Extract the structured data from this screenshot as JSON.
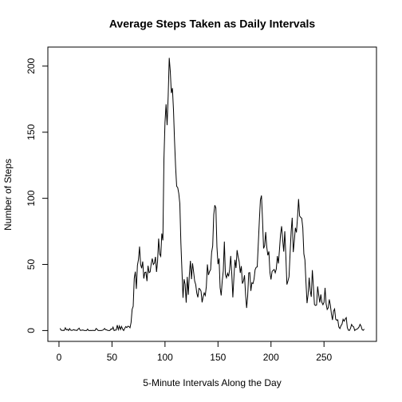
{
  "chart_data": {
    "type": "line",
    "title": "Average Steps Taken as Daily Intervals",
    "x_label": "5-Minute Intervals Along the Day",
    "y_label": "Number of Steps",
    "color": "#000000",
    "xlim": [
      -10.5,
      299.5
    ],
    "ylim": [
      -8.2,
      214.4
    ],
    "xticks": [
      0,
      50,
      100,
      150,
      200,
      250
    ],
    "yticks": [
      0,
      50,
      100,
      150,
      200
    ],
    "x": [
      1,
      2,
      3,
      4,
      5,
      6,
      7,
      8,
      9,
      10,
      11,
      12,
      13,
      14,
      15,
      16,
      17,
      18,
      19,
      20,
      21,
      22,
      23,
      24,
      25,
      26,
      27,
      28,
      29,
      30,
      31,
      32,
      33,
      34,
      35,
      36,
      37,
      38,
      39,
      40,
      41,
      42,
      43,
      44,
      45,
      46,
      47,
      48,
      49,
      50,
      51,
      52,
      53,
      54,
      55,
      56,
      57,
      58,
      59,
      60,
      61,
      62,
      63,
      64,
      65,
      66,
      67,
      68,
      69,
      70,
      71,
      72,
      73,
      74,
      75,
      76,
      77,
      78,
      79,
      80,
      81,
      82,
      83,
      84,
      85,
      86,
      87,
      88,
      89,
      90,
      91,
      92,
      93,
      94,
      95,
      96,
      97,
      98,
      99,
      100,
      101,
      102,
      103,
      104,
      105,
      106,
      107,
      108,
      109,
      110,
      111,
      112,
      113,
      114,
      115,
      116,
      117,
      118,
      119,
      120,
      121,
      122,
      123,
      124,
      125,
      126,
      127,
      128,
      129,
      130,
      131,
      132,
      133,
      134,
      135,
      136,
      137,
      138,
      139,
      140,
      141,
      142,
      143,
      144,
      145,
      146,
      147,
      148,
      149,
      150,
      151,
      152,
      153,
      154,
      155,
      156,
      157,
      158,
      159,
      160,
      161,
      162,
      163,
      164,
      165,
      166,
      167,
      168,
      169,
      170,
      171,
      172,
      173,
      174,
      175,
      176,
      177,
      178,
      179,
      180,
      181,
      182,
      183,
      184,
      185,
      186,
      187,
      188,
      189,
      190,
      191,
      192,
      193,
      194,
      195,
      196,
      197,
      198,
      199,
      200,
      201,
      202,
      203,
      204,
      205,
      206,
      207,
      208,
      209,
      210,
      211,
      212,
      213,
      214,
      215,
      216,
      217,
      218,
      219,
      220,
      221,
      222,
      223,
      224,
      225,
      226,
      227,
      228,
      229,
      230,
      231,
      232,
      233,
      234,
      235,
      236,
      237,
      238,
      239,
      240,
      241,
      242,
      243,
      244,
      245,
      246,
      247,
      248,
      249,
      250,
      251,
      252,
      253,
      254,
      255,
      256,
      257,
      258,
      259,
      260,
      261,
      262,
      263,
      264,
      265,
      266,
      267,
      268,
      269,
      270,
      271,
      272,
      273,
      274,
      275,
      276,
      277,
      278,
      279,
      280,
      281,
      282,
      283,
      284,
      285,
      286,
      287,
      288
    ],
    "values": [
      1.7,
      0.3,
      0.1,
      0.2,
      0.1,
      2.1,
      0.5,
      0.9,
      0,
      1.5,
      0.3,
      0.1,
      0.3,
      0.7,
      0.2,
      0.3,
      0,
      1.1,
      1.8,
      0.2,
      0.2,
      0.4,
      0.3,
      0,
      0,
      0,
      1.1,
      0,
      0,
      0.1,
      0,
      0.2,
      0,
      0,
      1.5,
      0.9,
      0,
      0,
      0,
      0,
      0.2,
      0.6,
      1.6,
      0.6,
      0.5,
      0.1,
      0,
      0,
      1.2,
      0.9,
      2.6,
      0,
      0.3,
      0.4,
      4.1,
      0.7,
      3.5,
      0.8,
      3.1,
      1.1,
      0,
      1.6,
      3,
      2.2,
      3.3,
      3,
      2.1,
      6.1,
      16,
      18.3,
      39.5,
      44.5,
      31.5,
      49.3,
      53.8,
      63.5,
      50,
      47.1,
      52.2,
      39.3,
      44,
      44.2,
      37.4,
      49,
      43.8,
      44.4,
      50.5,
      54.5,
      49.9,
      51,
      55.7,
      44.3,
      52.3,
      69.5,
      57.8,
      56.2,
      73.4,
      68.2,
      129.4,
      157.5,
      171.2,
      155.4,
      177.3,
      206.2,
      195.9,
      179.6,
      183.4,
      167,
      143.5,
      124,
      109.1,
      108.1,
      103.7,
      96,
      66.2,
      45.2,
      24.8,
      38.8,
      35,
      21.1,
      40.6,
      27,
      42.4,
      52.7,
      38.9,
      50.8,
      44.3,
      37.4,
      34.7,
      28.3,
      25.1,
      31.9,
      31.4,
      29.7,
      21.3,
      25.5,
      28.4,
      26.5,
      33.4,
      50,
      42,
      44.6,
      46,
      59.2,
      63.9,
      87.7,
      94.8,
      92.8,
      63.4,
      50.2,
      54.5,
      32.4,
      26.5,
      37.7,
      45.1,
      67.3,
      42.3,
      39.9,
      43.3,
      41,
      46.2,
      56.4,
      42.8,
      25.1,
      40,
      53.5,
      47.3,
      60.8,
      55.8,
      52,
      43.6,
      48.7,
      35.5,
      37.5,
      41.8,
      27.5,
      17.1,
      26.1,
      43.6,
      43.8,
      30,
      36.1,
      35.5,
      38.8,
      46,
      47.8,
      48.1,
      65.3,
      82.9,
      98.7,
      102.1,
      84,
      62.1,
      64.1,
      74.5,
      63.2,
      56.9,
      59.8,
      43.9,
      38.6,
      44.7,
      45.5,
      46.2,
      43.7,
      46.6,
      56.3,
      50.7,
      61.2,
      72.7,
      78.9,
      68.9,
      59.7,
      75.1,
      56.5,
      34.8,
      37.5,
      40.7,
      58,
      74.7,
      85.3,
      59.3,
      67.8,
      77.7,
      74.2,
      85.3,
      99.5,
      86.6,
      85.6,
      84.9,
      77.8,
      58,
      53.4,
      36.3,
      20.7,
      27.4,
      40,
      30.2,
      25.5,
      45.7,
      33.5,
      19.6,
      19,
      19.3,
      33.3,
      26.8,
      21.2,
      27.3,
      21.3,
      19.5,
      21.3,
      32.3,
      20.2,
      15.9,
      17.2,
      23.5,
      19.2,
      12.5,
      8,
      14.7,
      16.3,
      8.7,
      7.8,
      8.1,
      2.6,
      1.5,
      3.7,
      4.8,
      8.5,
      7.1,
      8.7,
      9.8,
      2.2,
      0.3,
      0.1,
      1.6,
      4.6,
      3.3,
      2.8,
      0,
      0.8,
      1,
      1.6,
      2.6,
      4.7,
      3.3,
      0.6,
      0.2,
      1.1
    ]
  }
}
